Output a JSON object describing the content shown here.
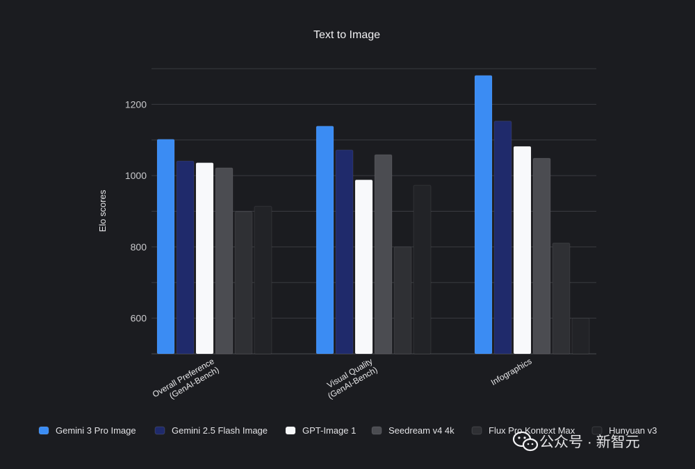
{
  "chart_data": {
    "type": "bar",
    "title": "Text to Image",
    "xlabel": "",
    "ylabel": "Elo scores",
    "ylim": [
      500,
      1300
    ],
    "yticks": [
      600,
      800,
      1000,
      1200
    ],
    "gridlines": [
      600,
      700,
      800,
      900,
      1000,
      1100,
      1200,
      1300
    ],
    "grid": true,
    "legend_position": "bottom",
    "categories": [
      [
        "Overall Preference",
        "(GenAI-Bench)"
      ],
      [
        "Visual Quality",
        "(GenAI-Bench)"
      ],
      [
        "Infographics"
      ]
    ],
    "series": [
      {
        "name": "Gemini 3 Pro Image",
        "color": "#3b8cf3",
        "values": [
          1102,
          1139,
          1281
        ]
      },
      {
        "name": "Gemini 2.5 Flash Image",
        "color": "#1f2a6b",
        "values": [
          1041,
          1072,
          1153
        ]
      },
      {
        "name": "GPT-Image 1",
        "color": "#f8f9fb",
        "values": [
          1036,
          988,
          1082
        ]
      },
      {
        "name": "Seedream v4 4k",
        "color": "#4b4c51",
        "values": [
          1022,
          1059,
          1049
        ]
      },
      {
        "name": "Flux Pro Kontext Max",
        "color": "#2f3034",
        "values": [
          899,
          800,
          811
        ]
      },
      {
        "name": "Hunyuan v3",
        "color": "#222327",
        "values": [
          914,
          973,
          600
        ]
      }
    ]
  },
  "watermark": {
    "text": "公众号 · 新智元",
    "icon": "wechat-icon"
  }
}
